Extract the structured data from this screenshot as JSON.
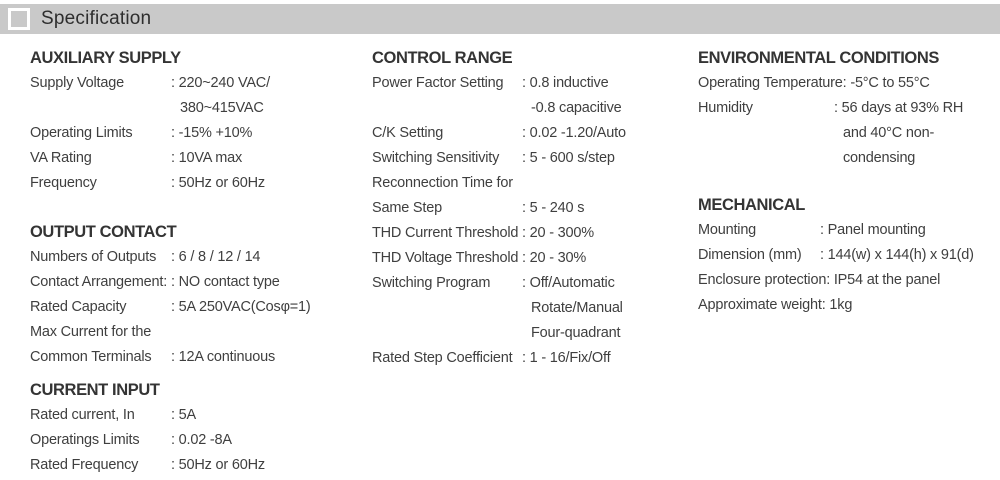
{
  "header": {
    "title": "Specification",
    "bar_color": "#c9c9c9"
  },
  "columns": [
    {
      "sections": [
        {
          "title": "AUXILIARY SUPPLY",
          "rows": [
            {
              "label": "Supply Voltage",
              "value": ": 220~240 VAC/\n380~415VAC"
            },
            {
              "label": "Operating Limits",
              "value": ": -15%  +10%"
            },
            {
              "label": "VA Rating",
              "value": ": 10VA max"
            },
            {
              "label": "Frequency",
              "value": ": 50Hz or 60Hz"
            }
          ]
        },
        {
          "title": "OUTPUT CONTACT",
          "rows": [
            {
              "label": "Numbers of Outputs",
              "value": ": 6 / 8 / 12 / 14"
            },
            {
              "label": "Contact Arrangement:",
              "value": ": NO contact type"
            },
            {
              "label": "Rated Capacity",
              "value": ": 5A 250VAC(Cosφ=1)"
            },
            {
              "label": "Max Current for the",
              "value": ""
            },
            {
              "label": "Common Terminals",
              "value": ": 12A continuous"
            }
          ]
        },
        {
          "title": "CURRENT INPUT",
          "rows": [
            {
              "label": "Rated current, In",
              "value": ": 5A"
            },
            {
              "label": "Operatings Limits",
              "value": ": 0.02 -8A"
            },
            {
              "label": "Rated Frequency",
              "value": ": 50Hz or 60Hz"
            }
          ]
        }
      ]
    },
    {
      "sections": [
        {
          "title": "CONTROL RANGE",
          "rows": [
            {
              "label": "Power Factor Setting",
              "value": ": 0.8 inductive\n-0.8 capacitive"
            },
            {
              "label": "C/K Setting",
              "value": ": 0.02 -1.20/Auto"
            },
            {
              "label": "Switching Sensitivity",
              "value": ": 5 - 600 s/step"
            },
            {
              "label": "Reconnection Time for",
              "value": ""
            },
            {
              "label": "Same Step",
              "value": ": 5 - 240 s"
            },
            {
              "label": "THD Current Threshold",
              "value": ": 20 - 300%"
            },
            {
              "label": "THD Voltage Threshold",
              "value": ": 20 - 30%"
            },
            {
              "label": "Switching Program",
              "value": ": Off/Automatic\nRotate/Manual\nFour-quadrant"
            },
            {
              "label": "Rated Step Coefficient",
              "value": ": 1 - 16/Fix/Off"
            }
          ]
        }
      ]
    },
    {
      "sections": [
        {
          "title": "ENVIRONMENTAL CONDITIONS",
          "rows": [
            {
              "label": "Operating Temperature",
              "value": ": -5°C to 55°C"
            },
            {
              "label": "Humidity",
              "value": ": 56 days at 93% RH\nand 40°C non-\ncondensing"
            }
          ]
        },
        {
          "title": "MECHANICAL",
          "rows": [
            {
              "label": "Mounting",
              "value": ": Panel mounting"
            },
            {
              "label": "Dimension (mm)",
              "value": ": 144(w) x 144(h) x 91(d)"
            },
            {
              "label": "Enclosure protection",
              "value": ": IP54 at the panel"
            },
            {
              "label": "Approximate weight",
              "value": ": 1kg"
            }
          ]
        }
      ]
    }
  ]
}
